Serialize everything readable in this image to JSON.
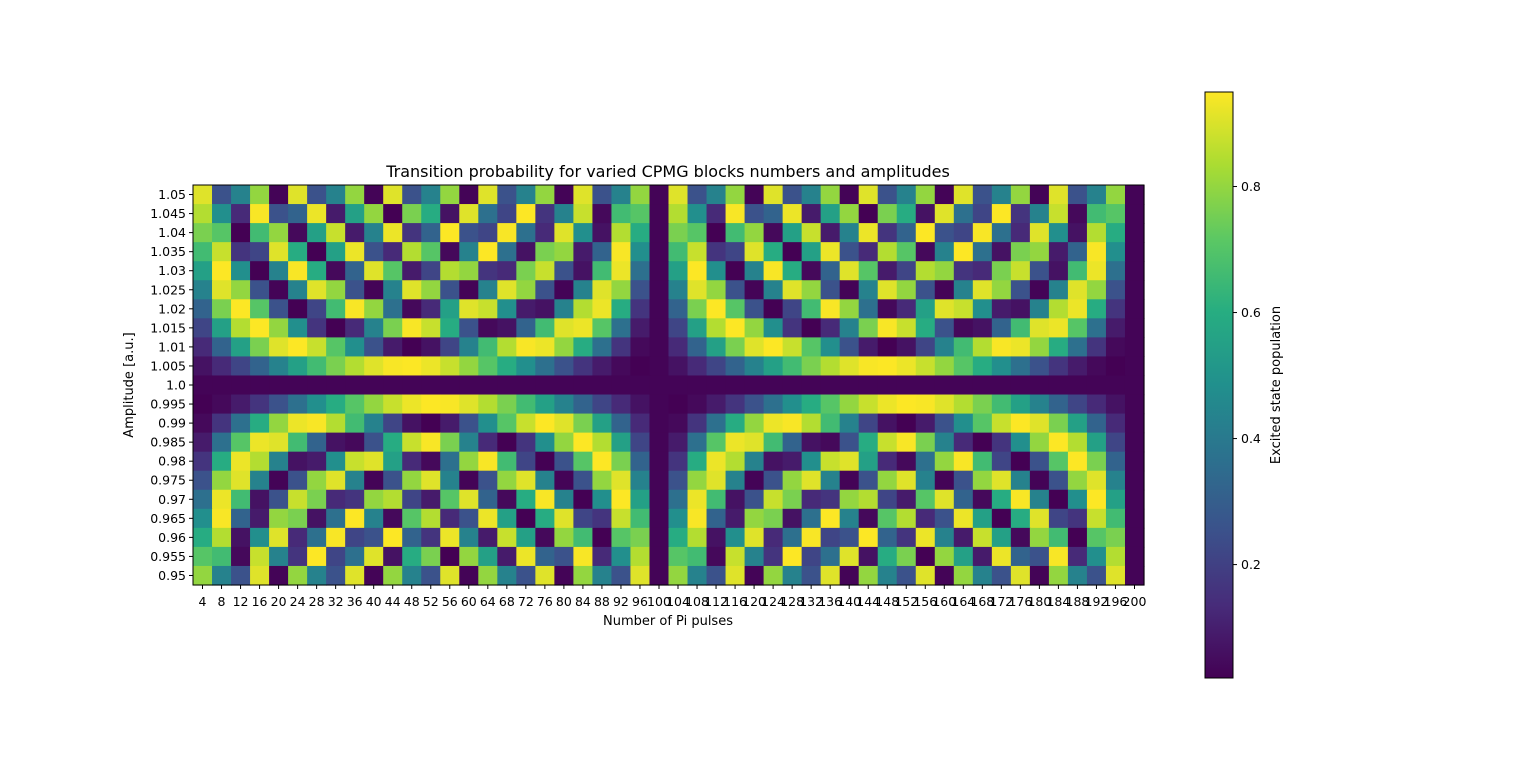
{
  "chart_data": {
    "type": "heatmap",
    "title": "Transition probability for varied CPMG blocks numbers and amplitudes",
    "xlabel": "Number of Pi pulses",
    "ylabel": "Amplitude [a.u.]",
    "colorbar_label": "Excited state population",
    "colormap": "viridis",
    "x_ticks": [
      "4",
      "8",
      "12",
      "16",
      "20",
      "24",
      "28",
      "32",
      "36",
      "40",
      "44",
      "48",
      "52",
      "56",
      "60",
      "64",
      "68",
      "72",
      "76",
      "80",
      "84",
      "88",
      "92",
      "96",
      "100",
      "104",
      "108",
      "112",
      "116",
      "120",
      "124",
      "128",
      "132",
      "136",
      "140",
      "144",
      "148",
      "152",
      "156",
      "160",
      "164",
      "168",
      "172",
      "176",
      "180",
      "184",
      "188",
      "192",
      "196",
      "200"
    ],
    "y_ticks": [
      "1.05",
      "1.045",
      "1.04",
      "1.035",
      "1.03",
      "1.025",
      "1.02",
      "1.015",
      "1.01",
      "1.005",
      "1.0",
      "0.995",
      "0.99",
      "0.985",
      "0.98",
      "0.975",
      "0.97",
      "0.965",
      "0.96",
      "0.955",
      "0.95"
    ],
    "colorbar_ticks": [
      "0.2",
      "0.4",
      "0.6",
      "0.8"
    ],
    "colorbar_tick_values": [
      0.2,
      0.4,
      0.6,
      0.8
    ],
    "vmin": 0.02,
    "vmax": 0.95,
    "model": "P = sin^2(2*pi*N*(A - 1.0) + 0.1), rows from 1.05 (top) to 0.95 (bottom), columns N = 4..200 step 4; values approximate the displayed pattern"
  }
}
